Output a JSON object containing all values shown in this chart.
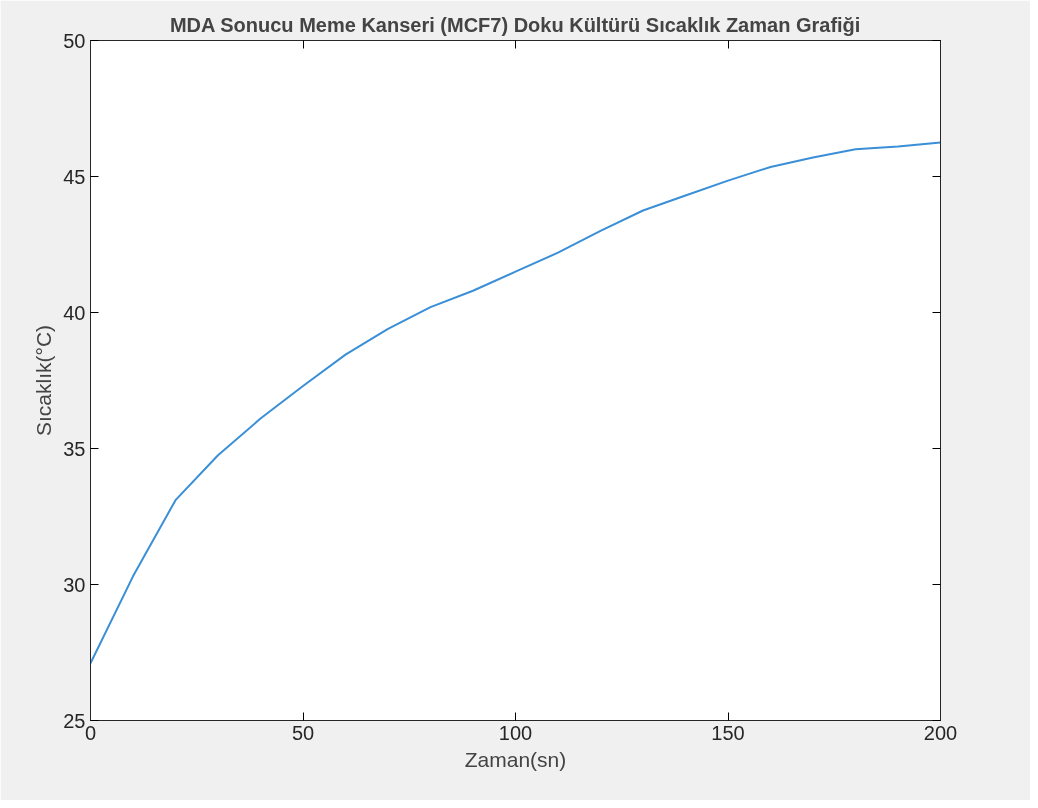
{
  "chart_data": {
    "type": "line",
    "title": "MDA Sonucu Meme Kanseri (MCF7) Doku Kültürü Sıcaklık Zaman Grafiği",
    "xlabel": "Zaman(sn)",
    "ylabel": "Sıcaklık(°C)",
    "x": [
      0,
      10,
      20,
      30,
      40,
      50,
      60,
      70,
      80,
      90,
      100,
      110,
      120,
      130,
      140,
      150,
      160,
      170,
      180,
      190,
      200
    ],
    "series": [
      {
        "color": "#3a8fd6",
        "values": [
          27.1,
          30.3,
          33.1,
          34.75,
          36.1,
          37.3,
          38.45,
          39.4,
          40.2,
          40.8,
          41.5,
          42.2,
          43.0,
          43.75,
          44.3,
          44.85,
          45.35,
          45.7,
          46.0,
          46.1,
          46.25
        ]
      }
    ],
    "xlim": [
      0,
      200
    ],
    "xticks": [
      0,
      50,
      100,
      150,
      200
    ],
    "ylim": [
      25,
      50
    ],
    "yticks": [
      25,
      30,
      35,
      40,
      45,
      50
    ],
    "grid": false,
    "marker": "none",
    "line_style": "solid"
  }
}
